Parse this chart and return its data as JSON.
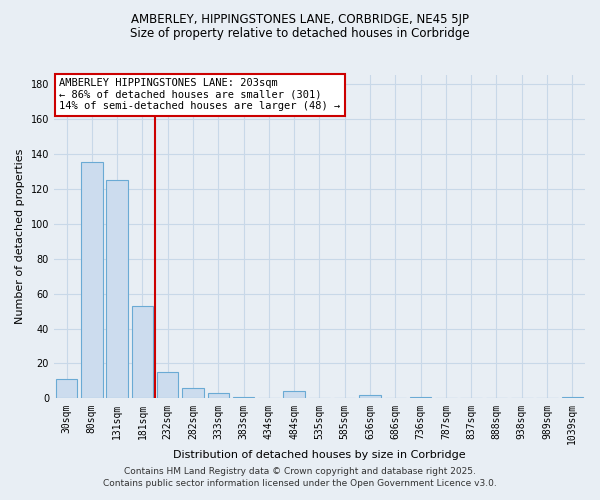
{
  "title_line1": "AMBERLEY, HIPPINGSTONES LANE, CORBRIDGE, NE45 5JP",
  "title_line2": "Size of property relative to detached houses in Corbridge",
  "xlabel": "Distribution of detached houses by size in Corbridge",
  "ylabel": "Number of detached properties",
  "categories": [
    "30sqm",
    "80sqm",
    "131sqm",
    "181sqm",
    "232sqm",
    "282sqm",
    "333sqm",
    "383sqm",
    "434sqm",
    "484sqm",
    "535sqm",
    "585sqm",
    "636sqm",
    "686sqm",
    "736sqm",
    "787sqm",
    "837sqm",
    "888sqm",
    "938sqm",
    "989sqm",
    "1039sqm"
  ],
  "values": [
    11,
    135,
    125,
    53,
    15,
    6,
    3,
    1,
    0,
    4,
    0,
    0,
    2,
    0,
    1,
    0,
    0,
    0,
    0,
    0,
    1
  ],
  "bar_color": "#ccdcee",
  "bar_edge_color": "#6aaad4",
  "annotation_text": "AMBERLEY HIPPINGSTONES LANE: 203sqm\n← 86% of detached houses are smaller (301)\n14% of semi-detached houses are larger (48) →",
  "annotation_box_facecolor": "#ffffff",
  "annotation_box_edgecolor": "#cc0000",
  "vline_color": "#cc0000",
  "vline_x": 3.5,
  "grid_color": "#c8d8e8",
  "background_color": "#e8eef4",
  "plot_bg_color": "#e8eef4",
  "ylim": [
    0,
    185
  ],
  "yticks": [
    0,
    20,
    40,
    60,
    80,
    100,
    120,
    140,
    160,
    180
  ],
  "footer_line1": "Contains HM Land Registry data © Crown copyright and database right 2025.",
  "footer_line2": "Contains public sector information licensed under the Open Government Licence v3.0.",
  "title_fontsize": 8.5,
  "subtitle_fontsize": 8.5,
  "axis_label_fontsize": 8,
  "tick_fontsize": 7,
  "annotation_fontsize": 7.5,
  "footer_fontsize": 6.5
}
